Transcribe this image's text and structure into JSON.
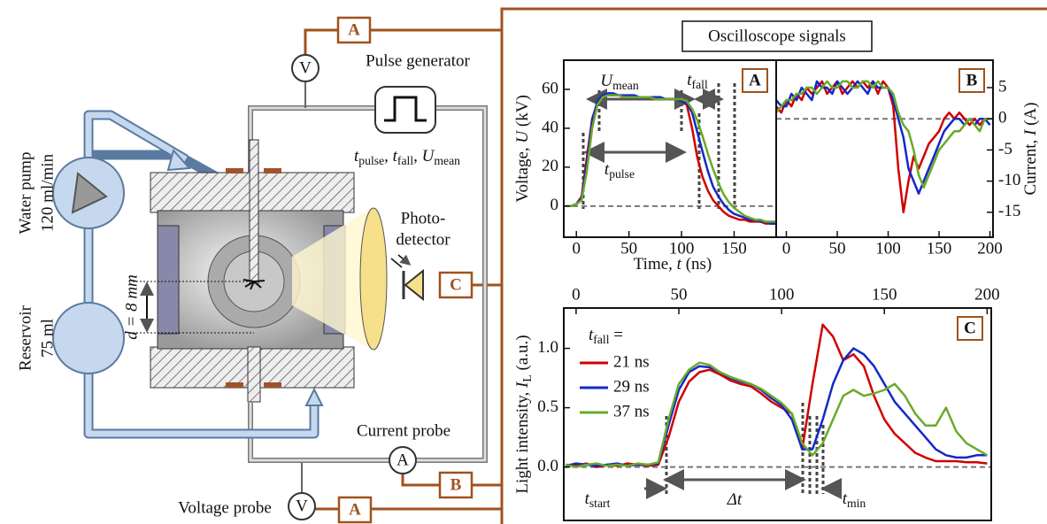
{
  "diagram": {
    "heading": "Oscilloscope signals",
    "pulse_generator": "Pulse generator",
    "pulse_params": [
      {
        "t": "t",
        "i": true
      },
      {
        "t": "pulse",
        "sub": true
      },
      {
        "t": ", "
      },
      {
        "t": "t",
        "i": true
      },
      {
        "t": "fall",
        "sub": true
      },
      {
        "t": ", "
      },
      {
        "t": "U",
        "i": true
      },
      {
        "t": "mean",
        "sub": true
      }
    ],
    "water_pump": "Water pump",
    "pump_rate": "120 ml/min",
    "reservoir": "Reservoir",
    "reservoir_volume": "75 ml",
    "photodetector": [
      "Photo-",
      "detector"
    ],
    "current_probe": "Current probe",
    "voltage_probe": "Voltage probe",
    "gap": "d = 8 mm",
    "meters": [
      "V",
      "A",
      "V"
    ],
    "channels": [
      "A",
      "C",
      "B",
      "A"
    ]
  },
  "chart_data": [
    {
      "type": "line",
      "panel_label": "A",
      "x_label": [
        {
          "t": "Time, "
        },
        {
          "t": "t",
          "i": true
        },
        {
          "t": " (ns)"
        }
      ],
      "y_label": [
        {
          "t": "Voltage, "
        },
        {
          "t": "U",
          "i": true
        },
        {
          "t": " (kV)"
        }
      ],
      "xlim": [
        -12,
        190
      ],
      "ylim": [
        -16,
        75
      ],
      "xticks": [
        0,
        50,
        100,
        150
      ],
      "yticks": [
        0,
        20,
        40,
        60
      ],
      "reference_line": 0,
      "annotations": [
        [
          {
            "t": "U",
            "i": true
          },
          {
            "t": "mean",
            "sub": true
          }
        ],
        [
          {
            "t": "t",
            "i": true
          },
          {
            "t": "fall",
            "sub": true
          }
        ],
        [
          {
            "t": "t",
            "i": true
          },
          {
            "t": "pulse",
            "sub": true
          }
        ]
      ],
      "x": [
        -10,
        -5,
        0,
        5,
        10,
        15,
        20,
        25,
        30,
        35,
        40,
        45,
        50,
        55,
        60,
        65,
        70,
        75,
        80,
        85,
        90,
        95,
        100,
        105,
        110,
        115,
        120,
        125,
        130,
        135,
        140,
        145,
        150,
        155,
        160,
        165,
        170,
        175,
        180,
        185,
        190
      ],
      "series": [
        {
          "name": "21 ns",
          "color": "#d00000",
          "values": [
            0,
            0,
            1,
            5,
            25,
            45,
            53,
            56,
            57,
            57,
            57,
            56,
            56,
            56,
            56,
            56,
            56,
            56,
            55,
            55,
            55,
            55,
            54,
            52,
            40,
            25,
            15,
            8,
            3,
            0,
            -3,
            -5,
            -6,
            -7,
            -7,
            -8,
            -8,
            -8,
            -9,
            -9,
            -9
          ]
        },
        {
          "name": "29 ns",
          "color": "#1428c8",
          "values": [
            0,
            0,
            1,
            4,
            22,
            44,
            54,
            57,
            58,
            58,
            57,
            57,
            57,
            57,
            56,
            56,
            56,
            56,
            56,
            55,
            55,
            55,
            54,
            53,
            48,
            38,
            28,
            18,
            10,
            5,
            1,
            -2,
            -4,
            -5,
            -6,
            -7,
            -7,
            -8,
            -8,
            -9,
            -9
          ]
        },
        {
          "name": "37 ns",
          "color": "#6aaa2a",
          "values": [
            0,
            0,
            1,
            3,
            18,
            40,
            52,
            56,
            57,
            57,
            57,
            56,
            56,
            56,
            56,
            56,
            56,
            55,
            55,
            55,
            55,
            55,
            55,
            54,
            50,
            44,
            36,
            27,
            19,
            12,
            6,
            2,
            -1,
            -3,
            -5,
            -6,
            -7,
            -7,
            -8,
            -8,
            -8
          ]
        }
      ]
    },
    {
      "type": "line",
      "panel_label": "B",
      "y_label": [
        {
          "t": "Current, "
        },
        {
          "t": "I",
          "i": true
        },
        {
          "t": " (A)"
        }
      ],
      "xlim": [
        -10,
        203
      ],
      "ylim": [
        -19,
        9.4
      ],
      "xticks": [
        0,
        50,
        100,
        150,
        200
      ],
      "yticks": [
        5,
        0,
        -5,
        -10,
        -15
      ],
      "reference_line": 0,
      "x": [
        -10,
        -5,
        0,
        5,
        10,
        15,
        20,
        25,
        30,
        35,
        40,
        45,
        50,
        55,
        60,
        65,
        70,
        75,
        80,
        85,
        90,
        95,
        100,
        105,
        110,
        115,
        120,
        125,
        130,
        135,
        140,
        145,
        150,
        155,
        160,
        165,
        170,
        175,
        180,
        185,
        190,
        195,
        200
      ],
      "series": [
        {
          "name": "21 ns",
          "color": "#d00000",
          "values": [
            2,
            1,
            3,
            2,
            4,
            3,
            5,
            4,
            5,
            6,
            4,
            5,
            6,
            4,
            5,
            6,
            5,
            6,
            5,
            6,
            4,
            6,
            5,
            2,
            -8,
            -15,
            -10,
            -6,
            -8,
            -6,
            -4,
            -3,
            -2,
            0,
            1,
            0,
            1,
            0,
            -1,
            0,
            -1,
            0,
            0
          ]
        },
        {
          "name": "29 ns",
          "color": "#1428c8",
          "values": [
            3,
            2,
            2,
            4,
            3,
            5,
            4,
            3,
            6,
            5,
            5,
            4,
            6,
            5,
            4,
            5,
            6,
            5,
            4,
            6,
            5,
            5,
            5,
            3,
            0,
            -3,
            -8,
            -10,
            -12,
            -10,
            -8,
            -6,
            -4,
            -2,
            -1,
            0,
            0,
            -1,
            0,
            -1,
            0,
            0,
            -1
          ]
        },
        {
          "name": "37 ns",
          "color": "#6aaa2a",
          "values": [
            1,
            2,
            3,
            3,
            4,
            4,
            5,
            5,
            4,
            5,
            6,
            5,
            5,
            6,
            6,
            5,
            5,
            6,
            6,
            5,
            6,
            5,
            5,
            4,
            1,
            -1,
            -2,
            -5,
            -9,
            -11,
            -9,
            -7,
            -5,
            -4,
            -3,
            -2,
            -2,
            -1,
            0,
            -1,
            -2,
            0,
            0
          ]
        }
      ]
    },
    {
      "type": "line",
      "panel_label": "C",
      "y_label": [
        {
          "t": "Light intensity, "
        },
        {
          "t": "I",
          "i": true
        },
        {
          "t": "L",
          "sub": true
        },
        {
          "t": " (a.u.)"
        }
      ],
      "legend_title": [
        {
          "t": "t",
          "i": true
        },
        {
          "t": "fall",
          "sub": true
        },
        {
          "t": " ="
        }
      ],
      "legend": "upper left",
      "xlim": [
        -6,
        202
      ],
      "ylim": [
        -0.45,
        1.34
      ],
      "xticks": [
        0,
        50,
        100,
        150,
        200
      ],
      "yticks": [
        {
          "value": 0,
          "label": "0.0"
        },
        {
          "value": 0.5,
          "label": "0.5"
        },
        {
          "value": 1,
          "label": "1.0"
        }
      ],
      "reference_line": 0,
      "annotations": [
        [
          {
            "t": "t",
            "i": true
          },
          {
            "t": "start",
            "sub": true
          }
        ],
        [
          {
            "t": "Δt",
            "i": true
          }
        ],
        [
          {
            "t": "t",
            "i": true
          },
          {
            "t": "min",
            "sub": true
          }
        ]
      ],
      "x": [
        -5,
        0,
        5,
        10,
        15,
        20,
        25,
        30,
        35,
        40,
        45,
        50,
        55,
        60,
        65,
        70,
        75,
        80,
        85,
        90,
        95,
        100,
        105,
        110,
        115,
        120,
        125,
        130,
        135,
        140,
        145,
        150,
        155,
        160,
        165,
        170,
        175,
        180,
        185,
        190,
        195,
        200
      ],
      "series": [
        {
          "name": "21 ns",
          "color": "#d00000",
          "values": [
            0.02,
            0.01,
            0.03,
            0.0,
            0.02,
            0.01,
            0.03,
            0.02,
            0.01,
            0.02,
            0.25,
            0.55,
            0.72,
            0.8,
            0.82,
            0.78,
            0.73,
            0.7,
            0.68,
            0.62,
            0.55,
            0.5,
            0.45,
            0.15,
            0.7,
            1.2,
            1.1,
            0.9,
            0.95,
            0.85,
            0.6,
            0.4,
            0.28,
            0.2,
            0.12,
            0.08,
            0.05,
            0.05,
            0.05,
            0.04,
            0.04,
            0.03
          ]
        },
        {
          "name": "29 ns",
          "color": "#1428c8",
          "values": [
            0.01,
            0.03,
            0.02,
            0.01,
            0.02,
            0.03,
            0.01,
            0.02,
            0.02,
            0.03,
            0.35,
            0.65,
            0.8,
            0.85,
            0.84,
            0.8,
            0.75,
            0.72,
            0.7,
            0.65,
            0.58,
            0.52,
            0.4,
            0.15,
            0.15,
            0.4,
            0.7,
            0.9,
            1.0,
            0.95,
            0.85,
            0.7,
            0.55,
            0.45,
            0.35,
            0.25,
            0.15,
            0.1,
            0.08,
            0.08,
            0.1,
            0.1
          ]
        },
        {
          "name": "37 ns",
          "color": "#6aaa2a",
          "values": [
            0.02,
            0.0,
            0.02,
            0.03,
            0.01,
            0.02,
            0.01,
            0.03,
            0.02,
            0.04,
            0.4,
            0.7,
            0.82,
            0.88,
            0.86,
            0.8,
            0.76,
            0.73,
            0.7,
            0.66,
            0.6,
            0.54,
            0.45,
            0.2,
            0.1,
            0.2,
            0.4,
            0.6,
            0.65,
            0.6,
            0.62,
            0.65,
            0.7,
            0.6,
            0.45,
            0.35,
            0.35,
            0.5,
            0.3,
            0.2,
            0.15,
            0.1
          ]
        }
      ]
    }
  ]
}
